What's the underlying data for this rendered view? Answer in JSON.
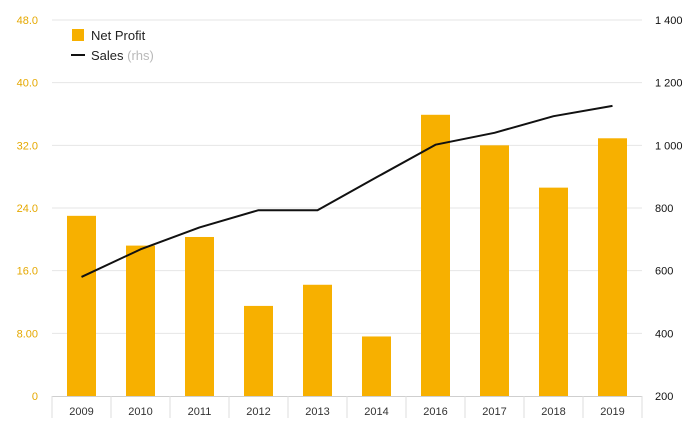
{
  "chart_data": {
    "type": "bar+line",
    "categories": [
      "2009",
      "2010",
      "2011",
      "2012",
      "2013",
      "2014",
      "2016",
      "2017",
      "2018",
      "2019"
    ],
    "series": [
      {
        "name": "Net Profit",
        "type": "bar",
        "axis": "left",
        "color": "#f7b000",
        "values": [
          23.0,
          19.2,
          20.3,
          11.5,
          14.2,
          7.6,
          35.9,
          32.0,
          26.6,
          32.9
        ]
      },
      {
        "name": "Sales",
        "type": "line",
        "axis": "right",
        "color": "#111111",
        "values": [
          580,
          668,
          738,
          793,
          793,
          898,
          1002,
          1040,
          1093,
          1126
        ]
      }
    ],
    "legend": [
      {
        "label": "Net Profit",
        "sub": ""
      },
      {
        "label": "Sales",
        "sub": "(rhs)"
      }
    ],
    "left_axis": {
      "ylim": [
        0,
        48
      ],
      "ticks": [
        0,
        8,
        16,
        24,
        32,
        40,
        48
      ],
      "tick_labels": [
        "0",
        "8.00",
        "16.0",
        "24.0",
        "32.0",
        "40.0",
        "48.0"
      ],
      "color": "#e5a800"
    },
    "right_axis": {
      "ylim": [
        200,
        1400
      ],
      "ticks": [
        200,
        400,
        600,
        800,
        1000,
        1200,
        1400
      ],
      "tick_labels": [
        "200",
        "400",
        "600",
        "800",
        "1 000",
        "1 200",
        "1 400"
      ]
    },
    "grid": true,
    "legend_position": "top-left"
  }
}
